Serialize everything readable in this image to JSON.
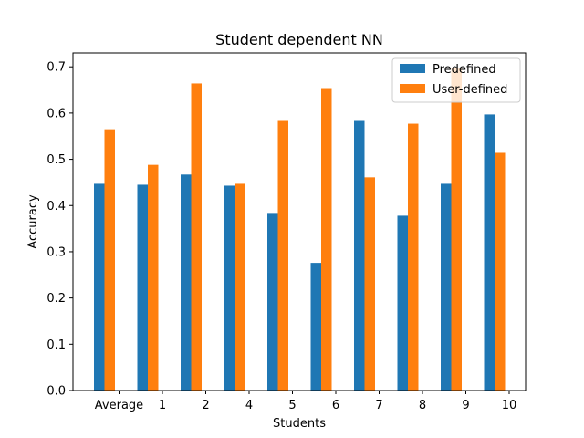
{
  "chart_data": {
    "type": "bar",
    "title": "Student dependent NN",
    "xlabel": "Students",
    "ylabel": "Accuracy",
    "categories": [
      "Average",
      "1",
      "2",
      "4",
      "5",
      "6",
      "7",
      "8",
      "9",
      "10"
    ],
    "series": [
      {
        "name": "Predefined",
        "color": "#1f77b4",
        "values": [
          0.447,
          0.445,
          0.467,
          0.443,
          0.384,
          0.276,
          0.583,
          0.378,
          0.447,
          0.597
        ]
      },
      {
        "name": "User-defined",
        "color": "#ff7f0e",
        "values": [
          0.565,
          0.488,
          0.664,
          0.447,
          0.583,
          0.654,
          0.461,
          0.577,
          0.697,
          0.514
        ]
      }
    ],
    "ylim": [
      0,
      0.73
    ],
    "yticks": [
      "0.0",
      "0.1",
      "0.2",
      "0.3",
      "0.4",
      "0.5",
      "0.6",
      "0.7"
    ],
    "grid": false,
    "legend_position": "top-right"
  }
}
